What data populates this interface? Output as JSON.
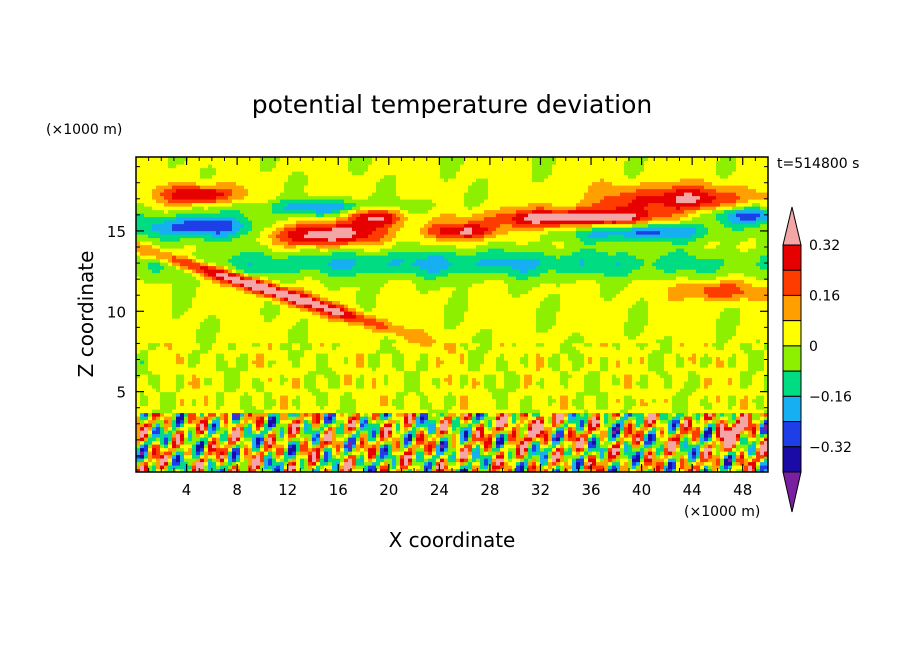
{
  "chart_data": {
    "type": "heatmap",
    "title": "potential temperature deviation",
    "xlabel": "X coordinate",
    "ylabel": "Z coordinate",
    "x_unit": "(×1000 m)",
    "y_unit": "(×1000 m)",
    "time_label": "t=514800 s",
    "xlim": [
      0,
      50
    ],
    "ylim": [
      0,
      19.6
    ],
    "x_ticks": [
      "4",
      "8",
      "12",
      "16",
      "20",
      "24",
      "28",
      "32",
      "36",
      "40",
      "44",
      "48"
    ],
    "y_ticks": [
      "5",
      "10",
      "15"
    ],
    "x_tick_values": [
      4,
      8,
      12,
      16,
      20,
      24,
      28,
      32,
      36,
      40,
      44,
      48
    ],
    "y_tick_values": [
      5,
      10,
      15
    ],
    "colorbar": {
      "levels": [
        -0.4,
        -0.32,
        -0.24,
        -0.16,
        -0.08,
        0,
        0.08,
        0.16,
        0.24,
        0.32,
        0.4
      ],
      "labels": [
        "0.32",
        "0.16",
        "0",
        "−0.16",
        "−0.32"
      ],
      "label_values": [
        0.32,
        0.16,
        0,
        -0.16,
        -0.32
      ],
      "colors": [
        "#7a1fa2",
        "#1a0aa6",
        "#1e3ee8",
        "#16b0f2",
        "#00dc82",
        "#8cf000",
        "#ffff00",
        "#ff9f00",
        "#ff3c00",
        "#e60000",
        "#f4a6a6"
      ]
    }
  }
}
